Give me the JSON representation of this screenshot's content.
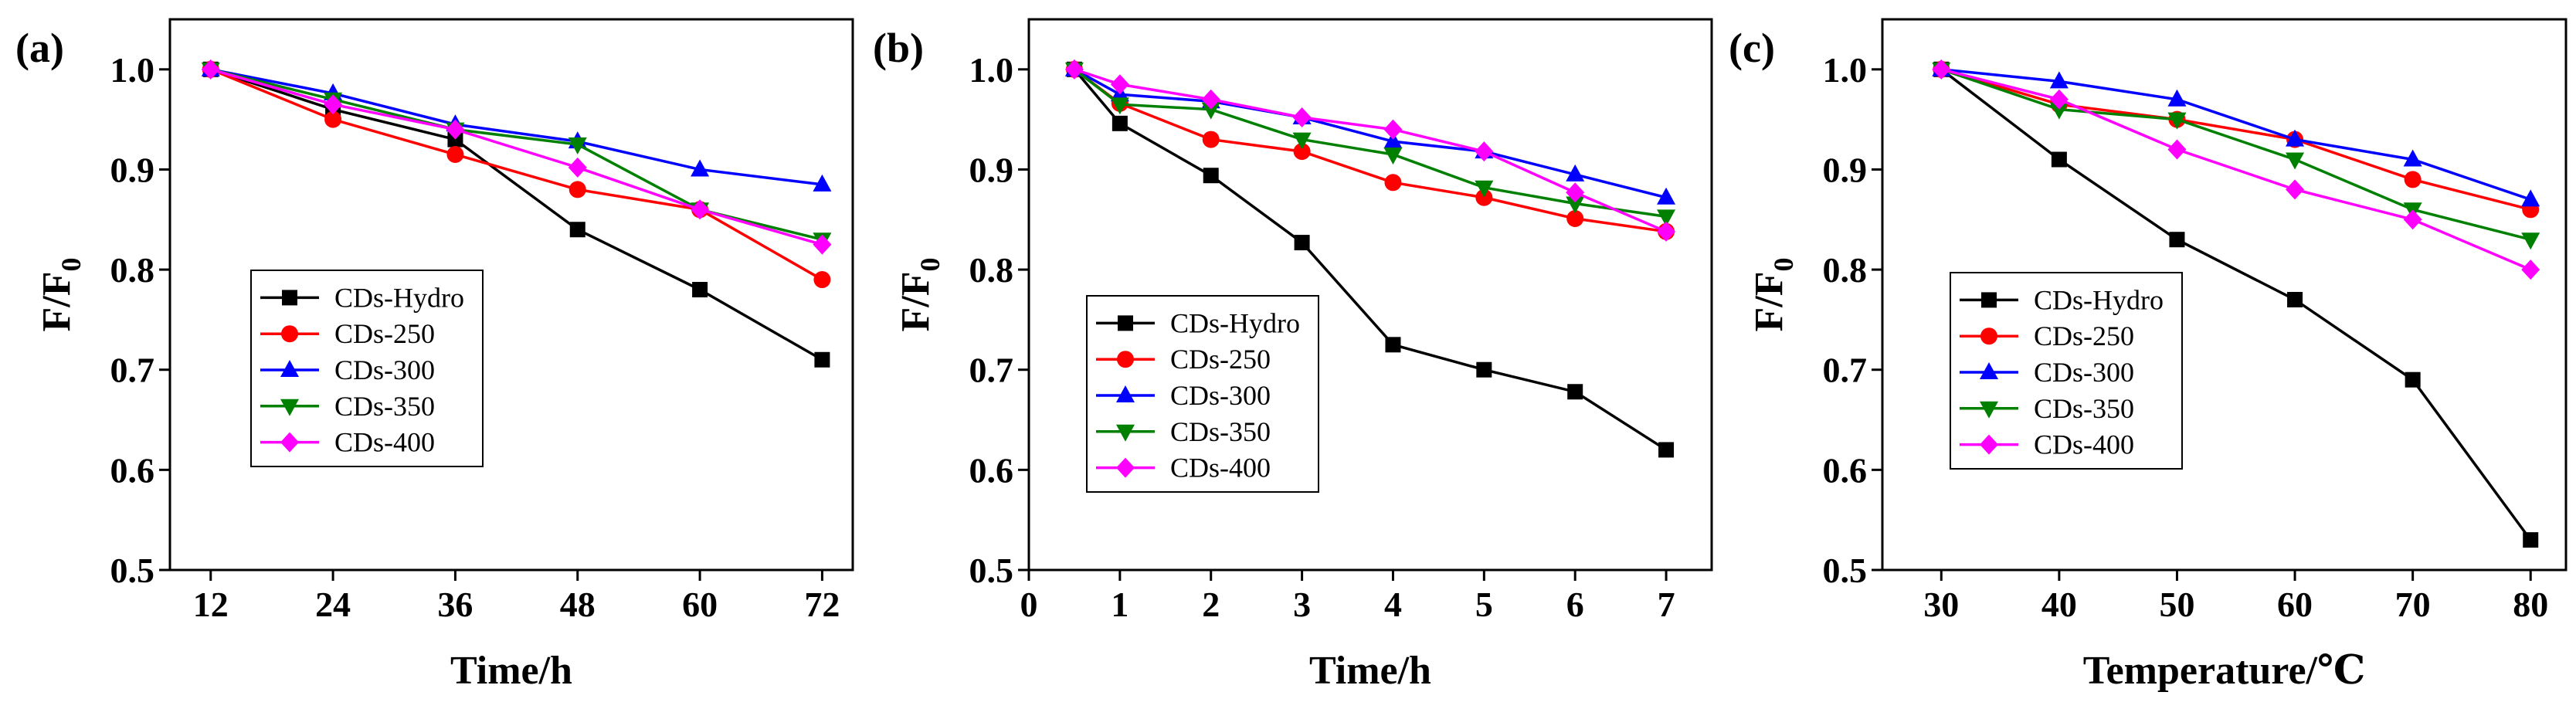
{
  "chart_data": [
    {
      "type": "line",
      "panel_label": "(a)",
      "xlabel": "Time/h",
      "ylabel": "F/F",
      "ylabel_sub": "0",
      "xlim": [
        8,
        75
      ],
      "ylim": [
        0.5,
        1.05
      ],
      "x_ticks": [
        "12",
        "24",
        "36",
        "48",
        "60",
        "72"
      ],
      "y_ticks": [
        "0.5",
        "0.6",
        "0.7",
        "0.8",
        "0.9",
        "1.0"
      ],
      "x": [
        12,
        24,
        36,
        48,
        60,
        72
      ],
      "legend_position": "center-left",
      "series": [
        {
          "name": "CDs-Hydro",
          "color": "#000000",
          "marker": "square",
          "values": [
            1.0,
            0.96,
            0.93,
            0.84,
            0.78,
            0.71
          ]
        },
        {
          "name": "CDs-250",
          "color": "#ff0000",
          "marker": "circle",
          "values": [
            1.0,
            0.95,
            0.915,
            0.88,
            0.86,
            0.79
          ]
        },
        {
          "name": "CDs-300",
          "color": "#0000ff",
          "marker": "triangle-up",
          "values": [
            1.0,
            0.976,
            0.945,
            0.928,
            0.9,
            0.885
          ]
        },
        {
          "name": "CDs-350",
          "color": "#008000",
          "marker": "triangle-down",
          "values": [
            1.0,
            0.97,
            0.94,
            0.925,
            0.86,
            0.83
          ]
        },
        {
          "name": "CDs-400",
          "color": "#ff00ff",
          "marker": "diamond",
          "values": [
            1.0,
            0.965,
            0.94,
            0.902,
            0.86,
            0.825
          ]
        }
      ]
    },
    {
      "type": "line",
      "panel_label": "(b)",
      "xlabel": "Time/h",
      "ylabel": "F/F",
      "ylabel_sub": "0",
      "xlim": [
        0,
        7.5
      ],
      "ylim": [
        0.5,
        1.05
      ],
      "x_ticks": [
        "0",
        "1",
        "2",
        "3",
        "4",
        "5",
        "6",
        "7"
      ],
      "y_ticks": [
        "0.5",
        "0.6",
        "0.7",
        "0.8",
        "0.9",
        "1.0"
      ],
      "x": [
        0.5,
        1,
        2,
        3,
        4,
        5,
        6,
        7
      ],
      "legend_position": "center-left",
      "series": [
        {
          "name": "CDs-Hydro",
          "color": "#000000",
          "marker": "square",
          "values": [
            1.0,
            0.946,
            0.894,
            0.827,
            0.725,
            0.7,
            0.678,
            0.62
          ]
        },
        {
          "name": "CDs-250",
          "color": "#ff0000",
          "marker": "circle",
          "values": [
            1.0,
            0.966,
            0.93,
            0.918,
            0.887,
            0.872,
            0.851,
            0.838
          ]
        },
        {
          "name": "CDs-300",
          "color": "#0000ff",
          "marker": "triangle-up",
          "values": [
            1.0,
            0.975,
            0.968,
            0.952,
            0.928,
            0.918,
            0.895,
            0.872
          ]
        },
        {
          "name": "CDs-350",
          "color": "#008000",
          "marker": "triangle-down",
          "values": [
            1.0,
            0.965,
            0.96,
            0.93,
            0.915,
            0.882,
            0.866,
            0.853
          ]
        },
        {
          "name": "CDs-400",
          "color": "#ff00ff",
          "marker": "diamond",
          "values": [
            1.0,
            0.985,
            0.97,
            0.952,
            0.94,
            0.918,
            0.877,
            0.838
          ]
        }
      ]
    },
    {
      "type": "line",
      "panel_label": "(c)",
      "xlabel": "Temperature/℃",
      "ylabel": "F/F",
      "ylabel_sub": "0",
      "xlim": [
        25,
        83
      ],
      "ylim": [
        0.5,
        1.05
      ],
      "x_ticks": [
        "30",
        "40",
        "50",
        "60",
        "70",
        "80"
      ],
      "y_ticks": [
        "0.5",
        "0.6",
        "0.7",
        "0.8",
        "0.9",
        "1.0"
      ],
      "x": [
        30,
        40,
        50,
        60,
        70,
        80
      ],
      "legend_position": "center-left",
      "series": [
        {
          "name": "CDs-Hydro",
          "color": "#000000",
          "marker": "square",
          "values": [
            1.0,
            0.91,
            0.83,
            0.77,
            0.69,
            0.53
          ]
        },
        {
          "name": "CDs-250",
          "color": "#ff0000",
          "marker": "circle",
          "values": [
            1.0,
            0.965,
            0.95,
            0.93,
            0.89,
            0.86
          ]
        },
        {
          "name": "CDs-300",
          "color": "#0000ff",
          "marker": "triangle-up",
          "values": [
            1.0,
            0.988,
            0.97,
            0.93,
            0.91,
            0.87
          ]
        },
        {
          "name": "CDs-350",
          "color": "#008000",
          "marker": "triangle-down",
          "values": [
            1.0,
            0.96,
            0.95,
            0.91,
            0.86,
            0.83
          ]
        },
        {
          "name": "CDs-400",
          "color": "#ff00ff",
          "marker": "diamond",
          "values": [
            1.0,
            0.97,
            0.92,
            0.88,
            0.85,
            0.8
          ]
        }
      ]
    }
  ]
}
